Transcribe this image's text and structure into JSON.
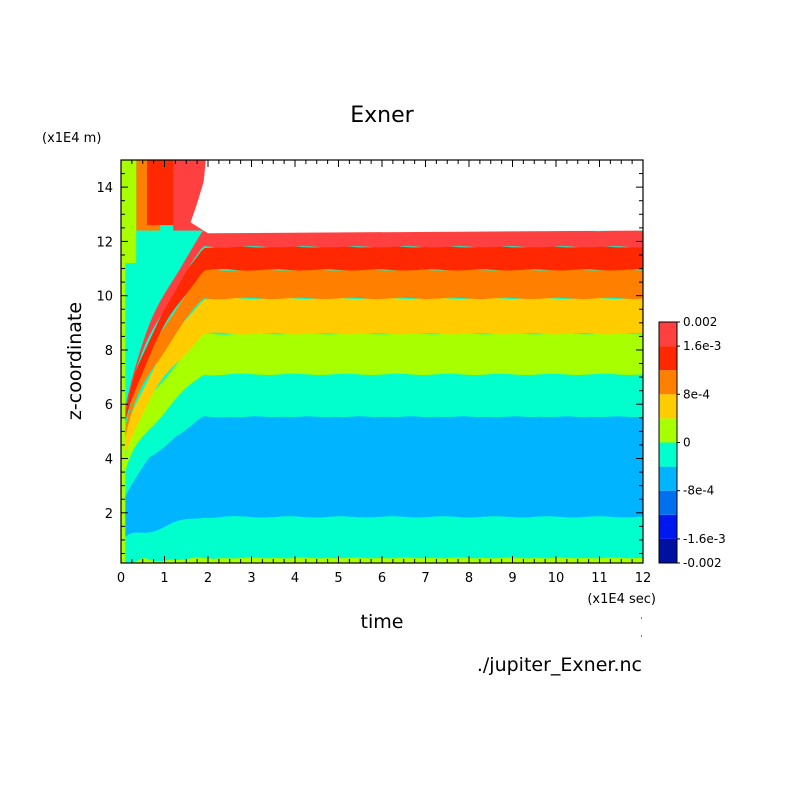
{
  "chart_data": {
    "type": "contour",
    "title": "Exner",
    "xlabel": "time",
    "ylabel": "z-coordinate",
    "x_unit": "(x1E4 sec)",
    "y_unit": "(x1E4 m)",
    "source_file": "./jupiter_Exner.nc",
    "xlim": [
      0,
      12
    ],
    "ylim": [
      0.15,
      15
    ],
    "x_ticks": [
      "0",
      "1",
      "2",
      "3",
      "4",
      "5",
      "6",
      "7",
      "8",
      "9",
      "10",
      "11",
      "12"
    ],
    "y_ticks": [
      "2",
      "4",
      "6",
      "8",
      "10",
      "12",
      "14"
    ],
    "colorbar": {
      "labels": [
        "0.002",
        "1.6e-3",
        "8e-4",
        "0",
        "-8e-4",
        "-1.6e-3",
        "-0.002"
      ],
      "levels": [
        -0.002,
        -0.0016,
        -0.0012,
        -0.0008,
        -0.0004,
        0,
        0.0004,
        0.0008,
        0.0012,
        0.0016,
        0.002
      ],
      "colors": [
        "#0010a0",
        "#0018f0",
        "#0070f0",
        "#00b4ff",
        "#00ffcc",
        "#a8ff00",
        "#ffcc00",
        "#ff8000",
        "#ff2800",
        "#ff4040"
      ]
    },
    "bands_steady_state": [
      {
        "color": "#a8ff00",
        "z_bottom": 0.15,
        "z_top": 0.35
      },
      {
        "color": "#00ffcc",
        "z_bottom": 0.35,
        "z_top": 1.85
      },
      {
        "color": "#00b4ff",
        "z_bottom": 1.85,
        "z_top": 5.55
      },
      {
        "color": "#00ffcc",
        "z_bottom": 5.55,
        "z_top": 7.1
      },
      {
        "color": "#a8ff00",
        "z_bottom": 7.1,
        "z_top": 8.6
      },
      {
        "color": "#ffcc00",
        "z_bottom": 8.6,
        "z_top": 9.9
      },
      {
        "color": "#ff8000",
        "z_bottom": 9.9,
        "z_top": 10.95
      },
      {
        "color": "#ff2800",
        "z_bottom": 10.95,
        "z_top": 11.8
      },
      {
        "color": "#ff4040",
        "z_bottom": 11.8,
        "z_top": 12.4
      }
    ],
    "missing_region": {
      "x_start": 1.6,
      "z_bottom": 12.4,
      "z_top": 15
    }
  }
}
